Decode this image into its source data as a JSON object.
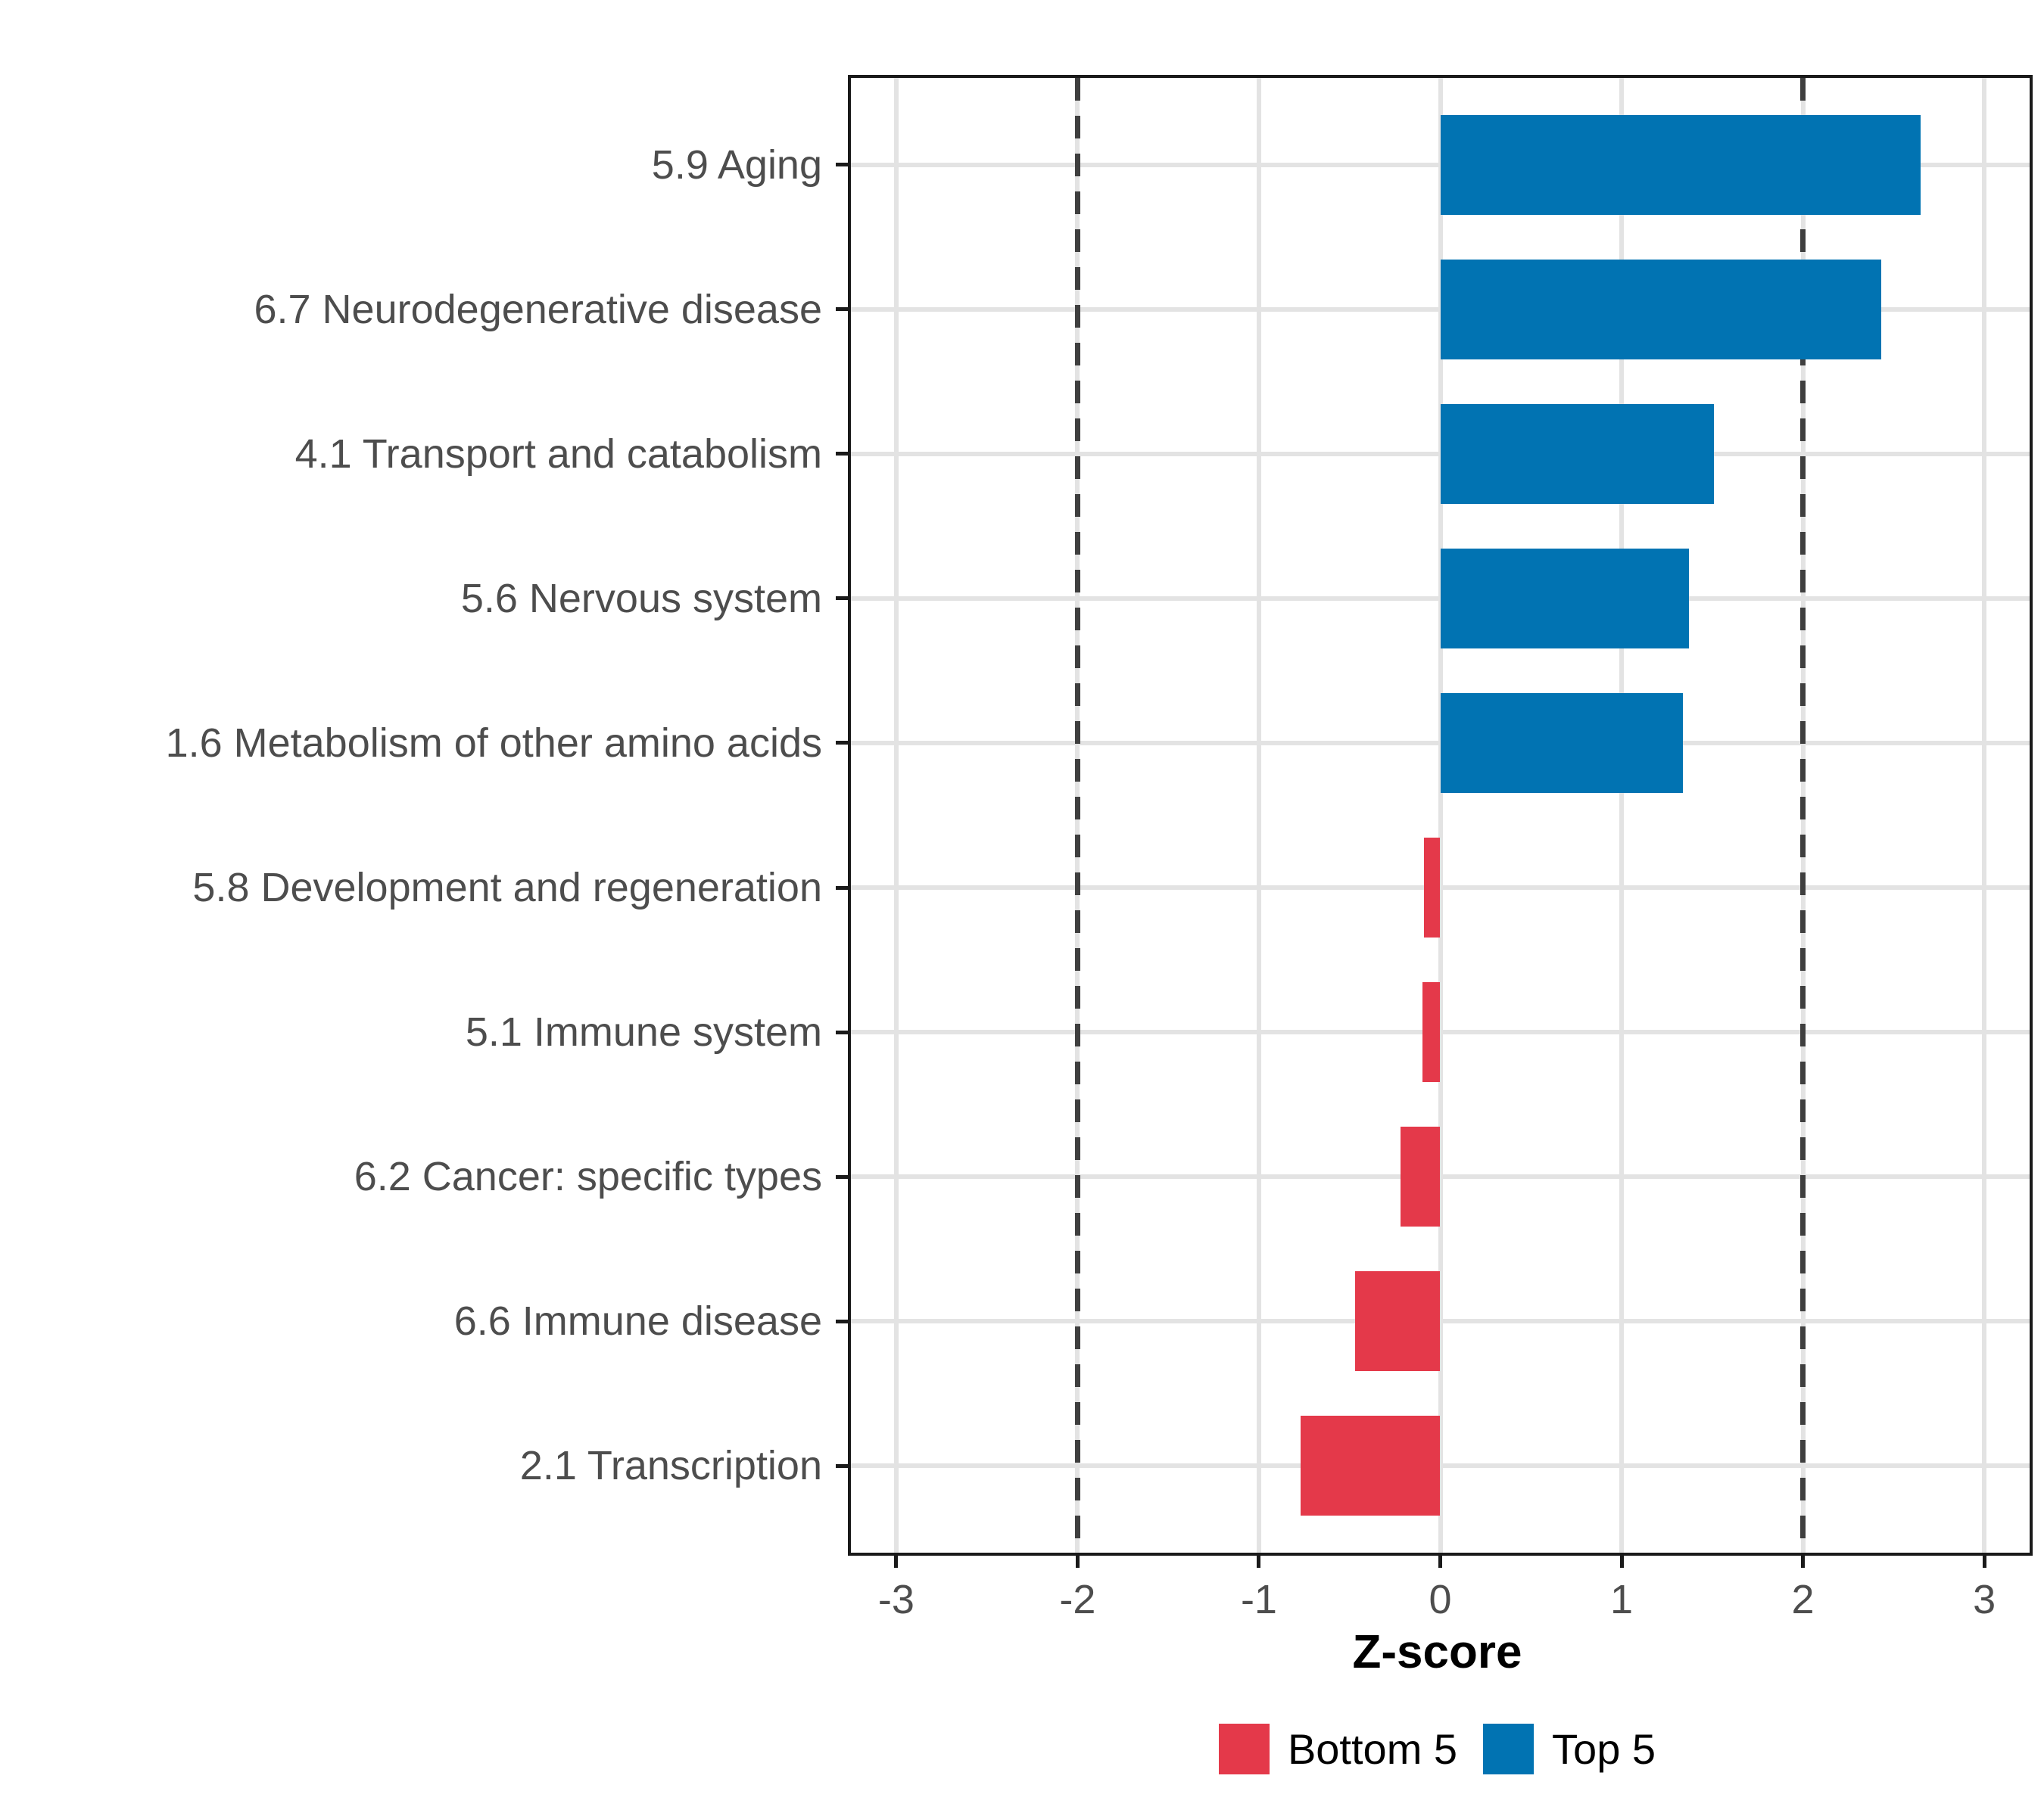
{
  "chart_data": {
    "type": "bar",
    "orientation": "horizontal",
    "title": "",
    "xlabel": "Z-score",
    "ylabel": "",
    "xlim": [
      -3.25,
      3.25
    ],
    "x_ticks": [
      -3,
      -2,
      -1,
      0,
      1,
      2,
      3
    ],
    "x_tick_labels": [
      "-3",
      "-2",
      "-1",
      "0",
      "1",
      "2",
      "3"
    ],
    "reference_lines": [
      -2,
      2
    ],
    "grid": true,
    "legend_position": "bottom",
    "categories": [
      "5.9 Aging",
      "6.7 Neurodegenerative disease",
      "4.1 Transport and catabolism",
      "5.6 Nervous system",
      "1.6 Metabolism of other amino acids",
      "5.8 Development and regeneration",
      "5.1 Immune system",
      "6.2 Cancer: specific types",
      "6.6 Immune disease",
      "2.1 Transcription"
    ],
    "values": [
      2.65,
      2.43,
      1.51,
      1.37,
      1.34,
      -0.09,
      -0.1,
      -0.22,
      -0.47,
      -0.77
    ],
    "groups": [
      "Top 5",
      "Top 5",
      "Top 5",
      "Top 5",
      "Top 5",
      "Bottom 5",
      "Bottom 5",
      "Bottom 5",
      "Bottom 5",
      "Bottom 5"
    ],
    "legend": [
      {
        "label": "Bottom 5",
        "color": "#e4394a"
      },
      {
        "label": "Top 5",
        "color": "#0173b2"
      }
    ],
    "colors": {
      "Bottom 5": "#e4394a",
      "Top 5": "#0173b2",
      "gridline": "#e3e3e3",
      "reference_line": "#3f3f3f",
      "axis_text": "#4d4d4d",
      "panel_border": "#1a1a1a"
    }
  }
}
